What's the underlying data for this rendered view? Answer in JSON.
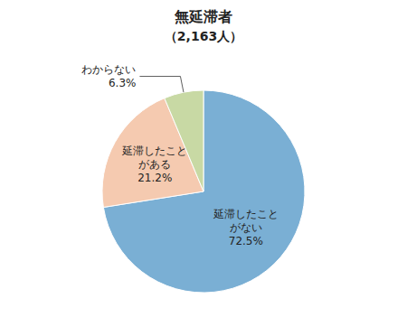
{
  "chart_data": {
    "type": "pie",
    "title": "無延滞者",
    "subtitle": "（2,163人）",
    "categories": [
      "延滞したこと\nがない",
      "延滞したこと\nがある",
      "わからない"
    ],
    "values": [
      72.5,
      21.2,
      6.3
    ],
    "value_labels": [
      "72.5%",
      "21.2%",
      "6.3%"
    ],
    "data_labels": true,
    "colors": [
      "#7aafd4",
      "#f5cab0",
      "#c8d9a4"
    ]
  }
}
